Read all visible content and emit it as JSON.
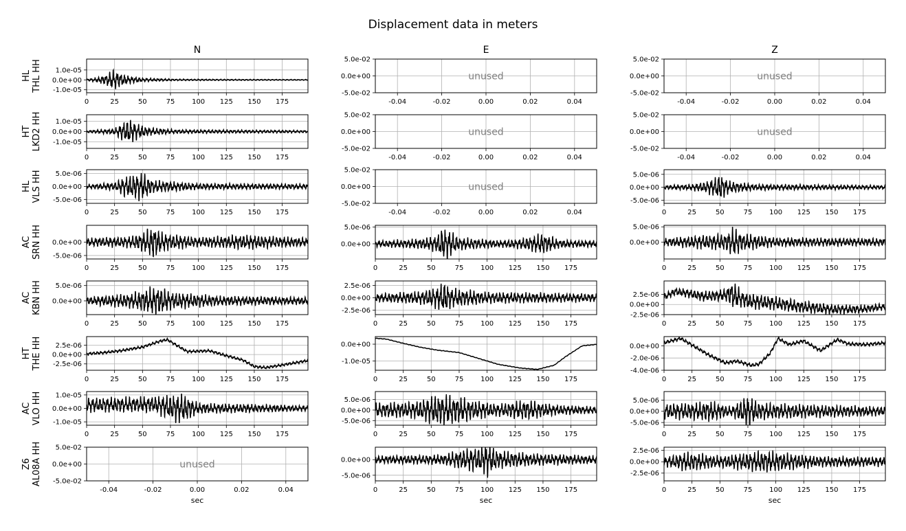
{
  "figure": {
    "title": "Displacement data in meters",
    "unused_label": "unused",
    "xlabel": "sec"
  },
  "chart_data": {
    "type": "line",
    "title": "Displacement data in meters",
    "columns": [
      "N",
      "E",
      "Z"
    ],
    "rows": [
      "HL\nTHL HH",
      "HT\nLKD2 HH",
      "HL\nVLS HH",
      "AC\nSRN HH",
      "AC\nKBN HH",
      "HT\nTHE HH",
      "AC\nVLO HH",
      "Z6\nAL08A HH"
    ],
    "line_color": "#000000",
    "grid": true,
    "xlabel_bottom": "sec",
    "unused_xticks": [
      "-0.04",
      "-0.02",
      "0.00",
      "0.02",
      "0.04"
    ],
    "unused_yticks": [
      "5.0e-02",
      "0.0e+00",
      "-5.0e-02"
    ],
    "panels": [
      {
        "row": 0,
        "col": 0,
        "used": true,
        "ylim": [
          -1.3e-05,
          2.1e-05
        ],
        "yticks": [
          [
            "1.0e-05",
            1e-05
          ],
          [
            "0.0e+00",
            0
          ],
          [
            "-1.0e-05",
            -1e-05
          ]
        ],
        "envelope": [
          [
            0,
            1e-06
          ],
          [
            10,
            2.5e-06
          ],
          [
            18,
            6e-06
          ],
          [
            23,
            1e-05
          ],
          [
            28,
            8.5e-06
          ],
          [
            35,
            4.5e-06
          ],
          [
            50,
            2e-06
          ],
          [
            80,
            9e-07
          ],
          [
            200,
            5e-07
          ]
        ]
      },
      {
        "row": 1,
        "col": 0,
        "used": true,
        "ylim": [
          -1.65e-05,
          1.65e-05
        ],
        "yticks": [
          [
            "1.0e-05",
            1e-05
          ],
          [
            "0.0e+00",
            0
          ],
          [
            "-1.0e-05",
            -1e-05
          ]
        ],
        "envelope": [
          [
            0,
            1.2e-06
          ],
          [
            25,
            3e-06
          ],
          [
            32,
            9e-06
          ],
          [
            38,
            1.3e-05
          ],
          [
            44,
            8.5e-06
          ],
          [
            55,
            4e-06
          ],
          [
            80,
            2e-06
          ],
          [
            200,
            1.3e-06
          ]
        ]
      },
      {
        "row": 2,
        "col": 0,
        "used": true,
        "ylim": [
          -6.5e-06,
          6.5e-06
        ],
        "yticks": [
          [
            "5.0e-06",
            5e-06
          ],
          [
            "0.0e+00",
            0
          ],
          [
            "-5.0e-06",
            -5e-06
          ]
        ],
        "envelope": [
          [
            0,
            8e-07
          ],
          [
            25,
            1.5e-06
          ],
          [
            32,
            3.5e-06
          ],
          [
            42,
            5e-06
          ],
          [
            50,
            5.5e-06
          ],
          [
            60,
            2.5e-06
          ],
          [
            100,
            1.2e-06
          ],
          [
            200,
            1e-06
          ]
        ]
      },
      {
        "row": 3,
        "col": 0,
        "used": true,
        "ylim": [
          -6.3e-06,
          6.3e-06
        ],
        "yticks": [
          [
            "0.0e+00",
            0
          ],
          [
            "-5.0e-06",
            -5e-06
          ]
        ],
        "envelope": [
          [
            0,
            1.5e-06
          ],
          [
            40,
            2.2e-06
          ],
          [
            52,
            4e-06
          ],
          [
            60,
            6.5e-06
          ],
          [
            68,
            3.5e-06
          ],
          [
            100,
            1.8e-06
          ],
          [
            140,
            2.8e-06
          ],
          [
            200,
            1.5e-06
          ]
        ]
      },
      {
        "row": 4,
        "col": 0,
        "used": true,
        "ylim": [
          -4.5e-06,
          6.5e-06
        ],
        "yticks": [
          [
            "5.0e-06",
            5e-06
          ],
          [
            "0.0e+00",
            0
          ]
        ],
        "envelope": [
          [
            0,
            1.2e-06
          ],
          [
            40,
            2.5e-06
          ],
          [
            58,
            4.5e-06
          ],
          [
            65,
            5e-06
          ],
          [
            75,
            3e-06
          ],
          [
            120,
            1.6e-06
          ],
          [
            200,
            1.2e-06
          ]
        ]
      },
      {
        "row": 5,
        "col": 0,
        "used": true,
        "ylim": [
          -4.2e-06,
          4.8e-06
        ],
        "yticks": [
          [
            "2.5e-06",
            2.5e-06
          ],
          [
            "0.0e+00",
            0
          ],
          [
            "-2.5e-06",
            -2.5e-06
          ]
        ],
        "envelope": [
          [
            0,
            4e-07
          ],
          [
            200,
            4e-07
          ]
        ],
        "trend": [
          [
            0,
            2e-07
          ],
          [
            15,
            5e-07
          ],
          [
            30,
            1e-06
          ],
          [
            50,
            2e-06
          ],
          [
            65,
            3.5e-06
          ],
          [
            72,
            4e-06
          ],
          [
            90,
            8e-07
          ],
          [
            110,
            1e-06
          ],
          [
            125,
            -3e-07
          ],
          [
            140,
            -1.5e-06
          ],
          [
            150,
            -3.2e-06
          ],
          [
            160,
            -3.5e-06
          ],
          [
            175,
            -2.8e-06
          ],
          [
            200,
            -1.5e-06
          ]
        ]
      },
      {
        "row": 6,
        "col": 0,
        "used": true,
        "ylim": [
          -1.25e-05,
          1.25e-05
        ],
        "yticks": [
          [
            "1.0e-05",
            1e-05
          ],
          [
            "0.0e+00",
            0
          ],
          [
            "-1.0e-05",
            -1e-05
          ]
        ],
        "envelope": [
          [
            0,
            5.5e-06
          ],
          [
            60,
            6e-06
          ],
          [
            80,
            1.1e-05
          ],
          [
            88,
            1.05e-05
          ],
          [
            100,
            4e-06
          ],
          [
            200,
            2e-06
          ]
        ],
        "trend": [
          [
            0,
            2.5e-06
          ],
          [
            60,
            3e-06
          ],
          [
            80,
            0
          ],
          [
            200,
            0
          ]
        ]
      },
      {
        "row": 7,
        "col": 0,
        "used": false
      },
      {
        "row": 0,
        "col": 1,
        "used": false
      },
      {
        "row": 1,
        "col": 1,
        "used": false
      },
      {
        "row": 2,
        "col": 1,
        "used": false
      },
      {
        "row": 3,
        "col": 1,
        "used": true,
        "ylim": [
          -4.5e-06,
          5.5e-06
        ],
        "yticks": [
          [
            "5.0e-06",
            5e-06
          ],
          [
            "0.0e+00",
            0
          ]
        ],
        "envelope": [
          [
            0,
            9e-07
          ],
          [
            40,
            1.5e-06
          ],
          [
            55,
            2.5e-06
          ],
          [
            60,
            5e-06
          ],
          [
            65,
            4.5e-06
          ],
          [
            75,
            2e-06
          ],
          [
            110,
            1e-06
          ],
          [
            130,
            1.5e-06
          ],
          [
            150,
            3.2e-06
          ],
          [
            165,
            1.2e-06
          ],
          [
            200,
            9e-07
          ]
        ]
      },
      {
        "row": 4,
        "col": 1,
        "used": true,
        "ylim": [
          -3.4e-06,
          3.4e-06
        ],
        "yticks": [
          [
            "2.5e-06",
            2.5e-06
          ],
          [
            "0.0e+00",
            0
          ],
          [
            "-2.5e-06",
            -2.5e-06
          ]
        ],
        "envelope": [
          [
            0,
            8e-07
          ],
          [
            40,
            1.3e-06
          ],
          [
            55,
            2.2e-06
          ],
          [
            62,
            3.4e-06
          ],
          [
            68,
            2e-06
          ],
          [
            100,
            1.2e-06
          ],
          [
            200,
            8e-07
          ]
        ]
      },
      {
        "row": 5,
        "col": 1,
        "used": true,
        "ylim": [
          -1.55e-05,
          4.5e-06
        ],
        "yticks": [
          [
            "0.0e+00",
            0
          ],
          [
            "-1.0e-05",
            -1e-05
          ]
        ],
        "envelope": [
          [
            0,
            2e-07
          ],
          [
            200,
            2e-07
          ]
        ],
        "trend": [
          [
            0,
            3.5e-06
          ],
          [
            10,
            3e-06
          ],
          [
            25,
            5e-07
          ],
          [
            40,
            -1.8e-06
          ],
          [
            55,
            -3.5e-06
          ],
          [
            75,
            -5e-06
          ],
          [
            95,
            -9e-06
          ],
          [
            110,
            -1.2e-05
          ],
          [
            130,
            -1.42e-05
          ],
          [
            145,
            -1.5e-05
          ],
          [
            160,
            -1.25e-05
          ],
          [
            170,
            -7.5e-06
          ],
          [
            185,
            -1e-06
          ],
          [
            200,
            0
          ]
        ]
      },
      {
        "row": 6,
        "col": 1,
        "used": true,
        "ylim": [
          -7.2e-06,
          8.8e-06
        ],
        "yticks": [
          [
            "5.0e-06",
            5e-06
          ],
          [
            "0.0e+00",
            0
          ],
          [
            "-5.0e-06",
            -5e-06
          ]
        ],
        "envelope": [
          [
            0,
            3.5e-06
          ],
          [
            35,
            4e-06
          ],
          [
            55,
            7.5e-06
          ],
          [
            70,
            7e-06
          ],
          [
            90,
            4.5e-06
          ],
          [
            110,
            3e-06
          ],
          [
            135,
            5e-06
          ],
          [
            160,
            2.5e-06
          ],
          [
            200,
            1.5e-06
          ]
        ]
      },
      {
        "row": 7,
        "col": 1,
        "used": true,
        "ylim": [
          -6.8e-06,
          4e-06
        ],
        "yticks": [
          [
            "0.0e+00",
            0
          ],
          [
            "-5.0e-06",
            -5e-06
          ]
        ],
        "envelope": [
          [
            0,
            1.2e-06
          ],
          [
            60,
            1.6e-06
          ],
          [
            80,
            3.5e-06
          ],
          [
            92,
            4e-06
          ],
          [
            100,
            5.5e-06
          ],
          [
            110,
            3e-06
          ],
          [
            140,
            2e-06
          ],
          [
            200,
            1.2e-06
          ]
        ]
      },
      {
        "row": 0,
        "col": 2,
        "used": false
      },
      {
        "row": 1,
        "col": 2,
        "used": false
      },
      {
        "row": 2,
        "col": 2,
        "used": true,
        "ylim": [
          -6.2e-06,
          6.8e-06
        ],
        "yticks": [
          [
            "5.0e-06",
            5e-06
          ],
          [
            "0.0e+00",
            0
          ],
          [
            "-5.0e-06",
            -5e-06
          ]
        ],
        "envelope": [
          [
            0,
            8e-07
          ],
          [
            25,
            1.2e-06
          ],
          [
            35,
            2e-06
          ],
          [
            45,
            3.5e-06
          ],
          [
            50,
            5.5e-06
          ],
          [
            58,
            2.5e-06
          ],
          [
            80,
            1.2e-06
          ],
          [
            200,
            8e-07
          ]
        ]
      },
      {
        "row": 3,
        "col": 2,
        "used": true,
        "ylim": [
          -5.5e-06,
          5.5e-06
        ],
        "yticks": [
          [
            "5.0e-06",
            5e-06
          ],
          [
            "0.0e+00",
            0
          ]
        ],
        "envelope": [
          [
            0,
            1.2e-06
          ],
          [
            30,
            2.2e-06
          ],
          [
            55,
            2.8e-06
          ],
          [
            62,
            5e-06
          ],
          [
            70,
            3e-06
          ],
          [
            100,
            1.5e-06
          ],
          [
            200,
            1.2e-06
          ]
        ]
      },
      {
        "row": 4,
        "col": 2,
        "used": true,
        "ylim": [
          -2.5e-06,
          5.8e-06
        ],
        "yticks": [
          [
            "2.5e-06",
            2.5e-06
          ],
          [
            "0.0e+00",
            0
          ],
          [
            "-2.5e-06",
            -2.5e-06
          ]
        ],
        "envelope": [
          [
            0,
            8e-07
          ],
          [
            55,
            1.5e-06
          ],
          [
            62,
            3.5e-06
          ],
          [
            70,
            2e-06
          ],
          [
            200,
            8e-07
          ]
        ],
        "trend": [
          [
            0,
            1.8e-06
          ],
          [
            10,
            3.2e-06
          ],
          [
            20,
            2.8e-06
          ],
          [
            35,
            2e-06
          ],
          [
            50,
            2.2e-06
          ],
          [
            60,
            2.5e-06
          ],
          [
            75,
            8e-07
          ],
          [
            100,
            3e-07
          ],
          [
            120,
            -5e-07
          ],
          [
            150,
            -1.2e-06
          ],
          [
            175,
            -1.2e-06
          ],
          [
            200,
            -5e-07
          ]
        ]
      },
      {
        "row": 5,
        "col": 2,
        "used": true,
        "ylim": [
          -4e-06,
          1.5e-06
        ],
        "yticks": [
          [
            "0.0e+00",
            0
          ],
          [
            "-2.0e-06",
            -2e-06
          ],
          [
            "-4.0e-06",
            -4e-06
          ]
        ],
        "envelope": [
          [
            0,
            3e-07
          ],
          [
            200,
            3e-07
          ]
        ],
        "trend": [
          [
            0,
            5e-07
          ],
          [
            15,
            1.2e-06
          ],
          [
            28,
            -2e-07
          ],
          [
            40,
            -1.5e-06
          ],
          [
            55,
            -2.8e-06
          ],
          [
            65,
            -2.5e-06
          ],
          [
            78,
            -3.2e-06
          ],
          [
            85,
            -3e-06
          ],
          [
            95,
            -1.2e-06
          ],
          [
            102,
            1.2e-06
          ],
          [
            112,
            2e-07
          ],
          [
            125,
            8e-07
          ],
          [
            140,
            -8e-07
          ],
          [
            155,
            1e-06
          ],
          [
            165,
            3e-07
          ],
          [
            180,
            2e-07
          ],
          [
            200,
            5e-07
          ]
        ]
      },
      {
        "row": 6,
        "col": 2,
        "used": true,
        "ylim": [
          -6.2e-06,
          8.8e-06
        ],
        "yticks": [
          [
            "5.0e-06",
            5e-06
          ],
          [
            "0.0e+00",
            0
          ],
          [
            "-5.0e-06",
            -5e-06
          ]
        ],
        "envelope": [
          [
            0,
            3.5e-06
          ],
          [
            30,
            4e-06
          ],
          [
            40,
            5e-06
          ],
          [
            60,
            2e-06
          ],
          [
            75,
            7.5e-06
          ],
          [
            85,
            4e-06
          ],
          [
            100,
            3.5e-06
          ],
          [
            200,
            2e-06
          ]
        ]
      },
      {
        "row": 7,
        "col": 2,
        "used": true,
        "ylim": [
          -4.2e-06,
          3.2e-06
        ],
        "yticks": [
          [
            "2.5e-06",
            2.5e-06
          ],
          [
            "0.0e+00",
            0
          ],
          [
            "-2.5e-06",
            -2.5e-06
          ]
        ],
        "envelope": [
          [
            0,
            1e-06
          ],
          [
            20,
            2.2e-06
          ],
          [
            50,
            1.3e-06
          ],
          [
            90,
            2.5e-06
          ],
          [
            100,
            2.2e-06
          ],
          [
            140,
            1.2e-06
          ],
          [
            200,
            1e-06
          ]
        ]
      }
    ]
  }
}
